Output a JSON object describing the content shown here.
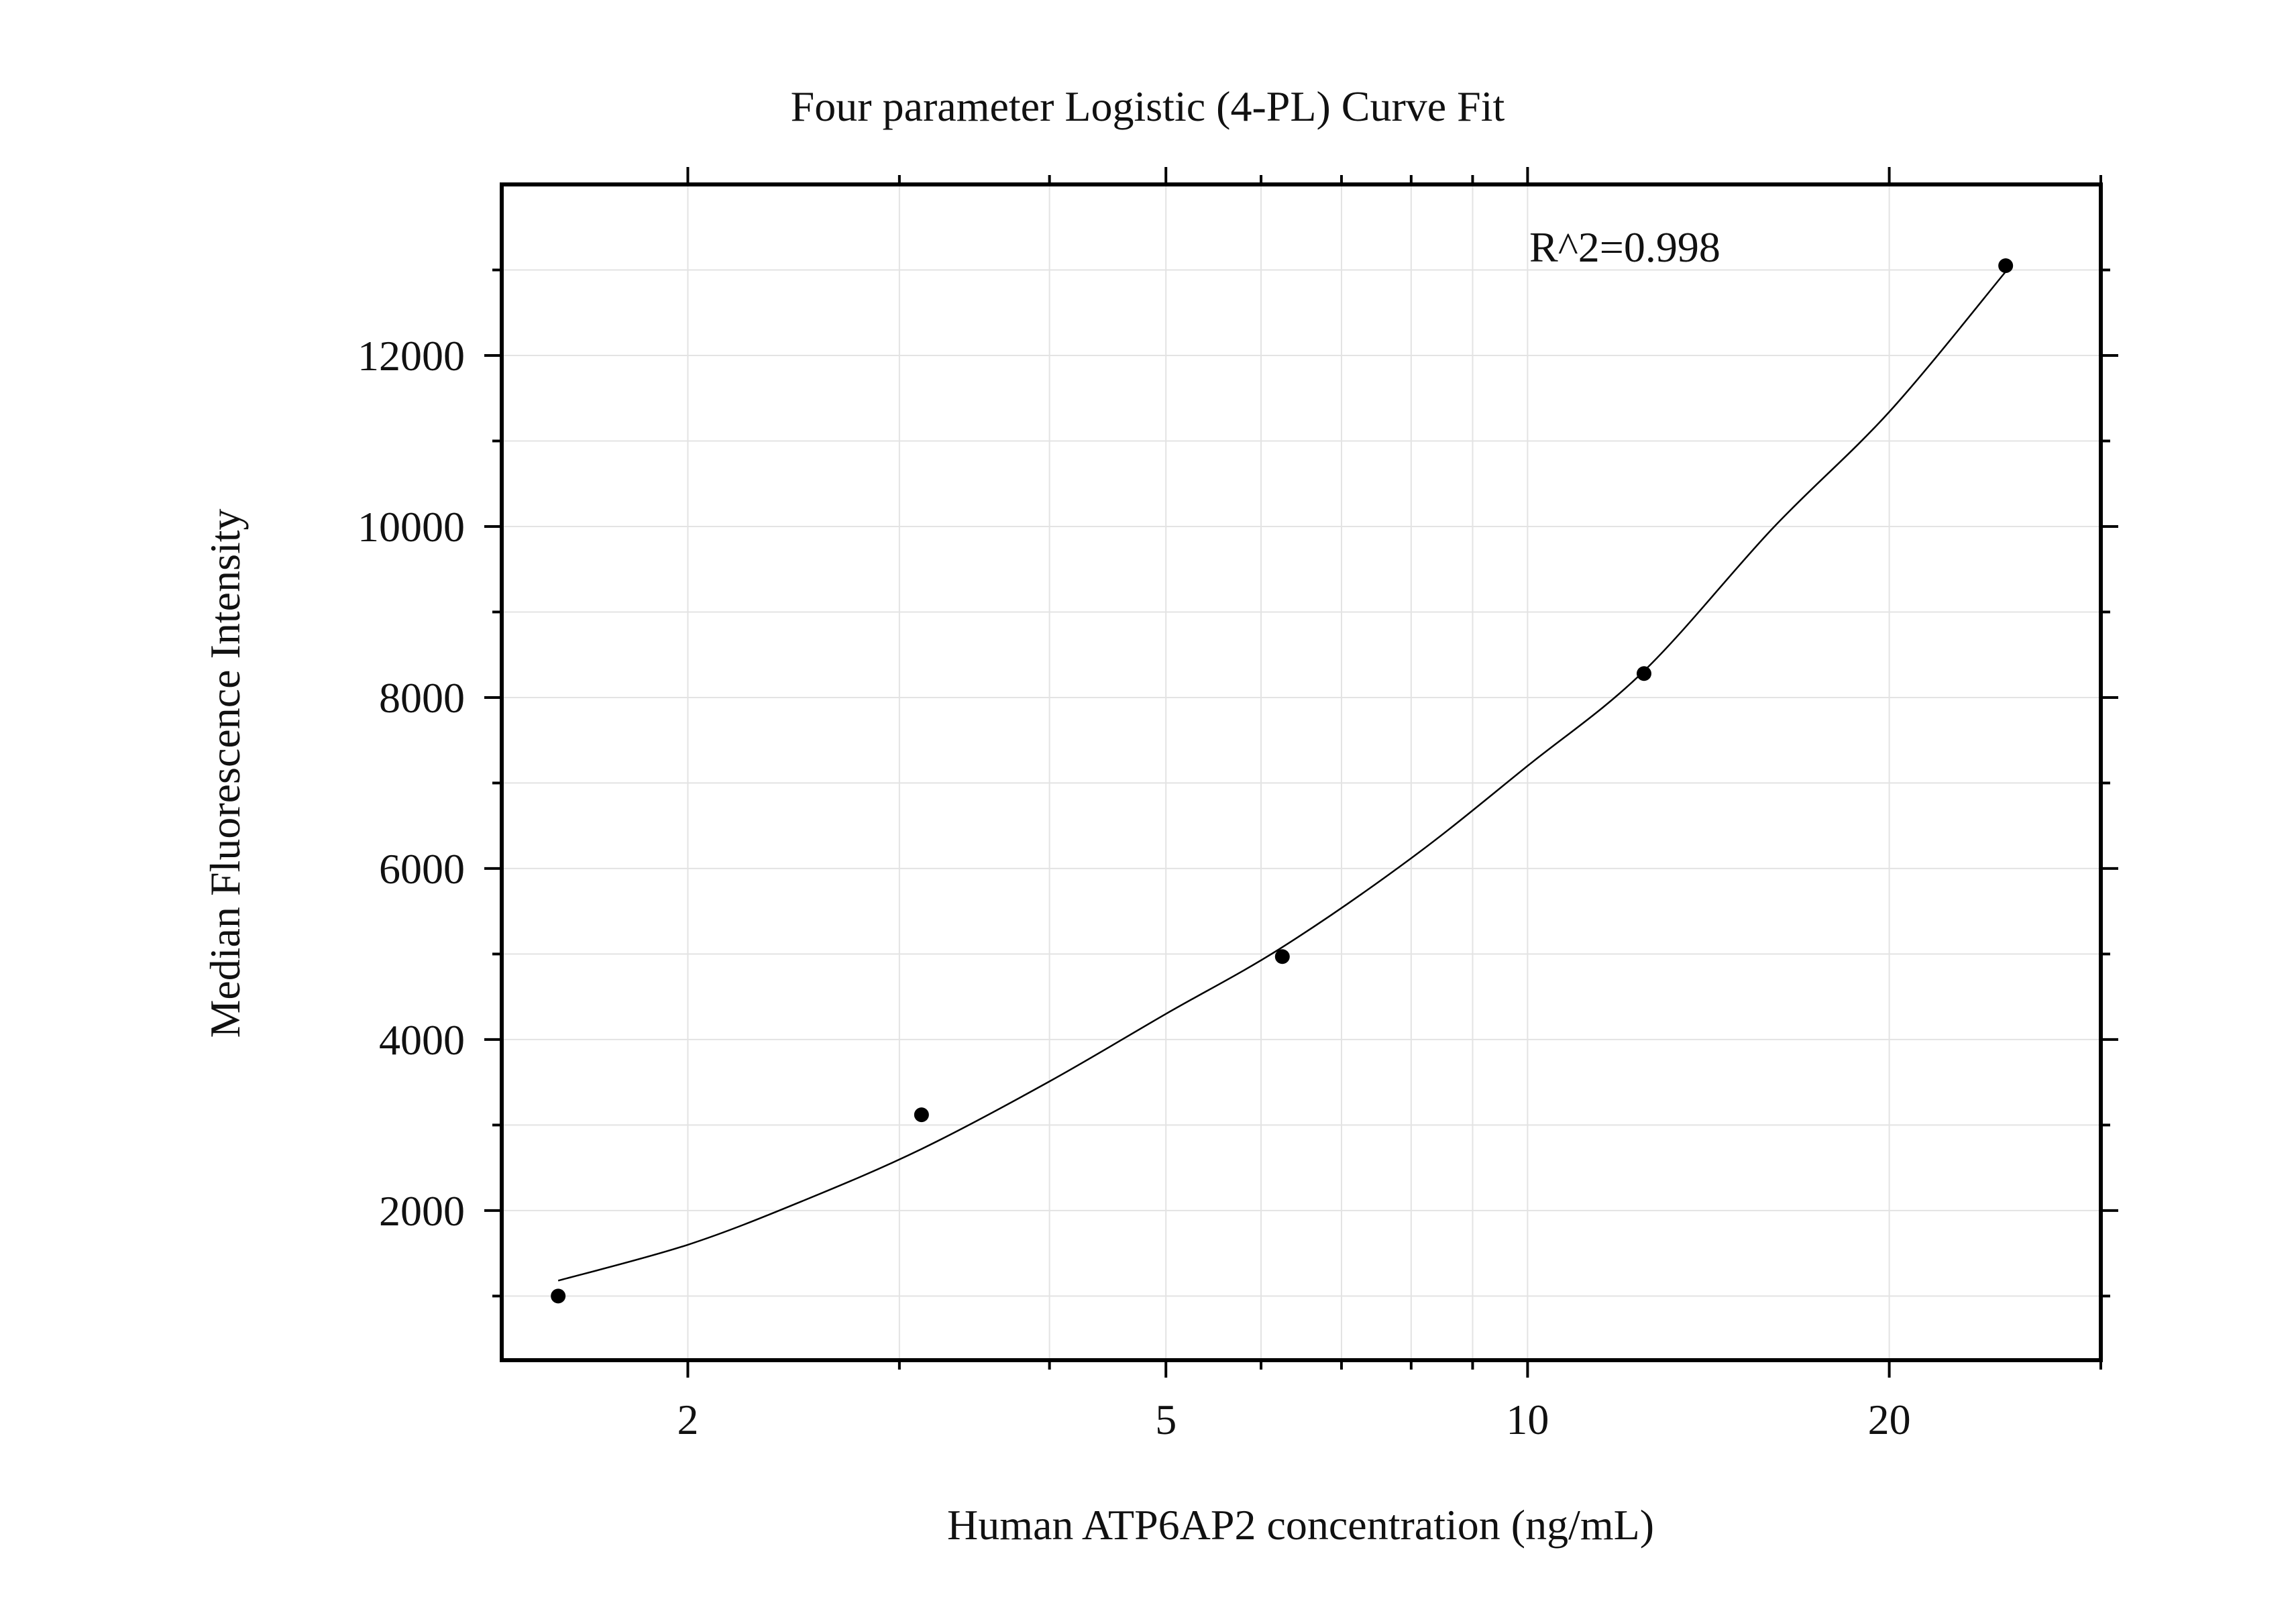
{
  "chart_data": {
    "type": "scatter",
    "title": "Four parameter Logistic (4-PL) Curve Fit",
    "xlabel": "Human ATP6AP2 concentration (ng/mL)",
    "ylabel": "Median Fluorescence Intensity",
    "x_scale": "log",
    "xlim": [
      1.4,
      30
    ],
    "ylim": [
      250,
      14000
    ],
    "x_ticks": [
      2,
      5,
      10,
      20
    ],
    "x_tick_labels": [
      "2",
      "5",
      "10",
      "20"
    ],
    "y_ticks": [
      2000,
      4000,
      6000,
      8000,
      10000,
      12000
    ],
    "y_tick_labels": [
      "2000",
      "4000",
      "6000",
      "8000",
      "10000",
      "12000"
    ],
    "grid": true,
    "annotation": "R^2=0.998",
    "series": [
      {
        "kind": "points",
        "x": [
          1.56,
          3.13,
          6.25,
          12.5,
          25
        ],
        "y": [
          1000,
          3120,
          4970,
          8280,
          13050
        ]
      },
      {
        "kind": "fit-line",
        "x": [
          1.56,
          2,
          2.5,
          3.13,
          4,
          5,
          6.25,
          8,
          10,
          12.5,
          16,
          20,
          25
        ],
        "y": [
          1180,
          1600,
          2120,
          2720,
          3510,
          4300,
          5080,
          6120,
          7200,
          8310,
          9980,
          11340,
          12980
        ]
      }
    ]
  }
}
